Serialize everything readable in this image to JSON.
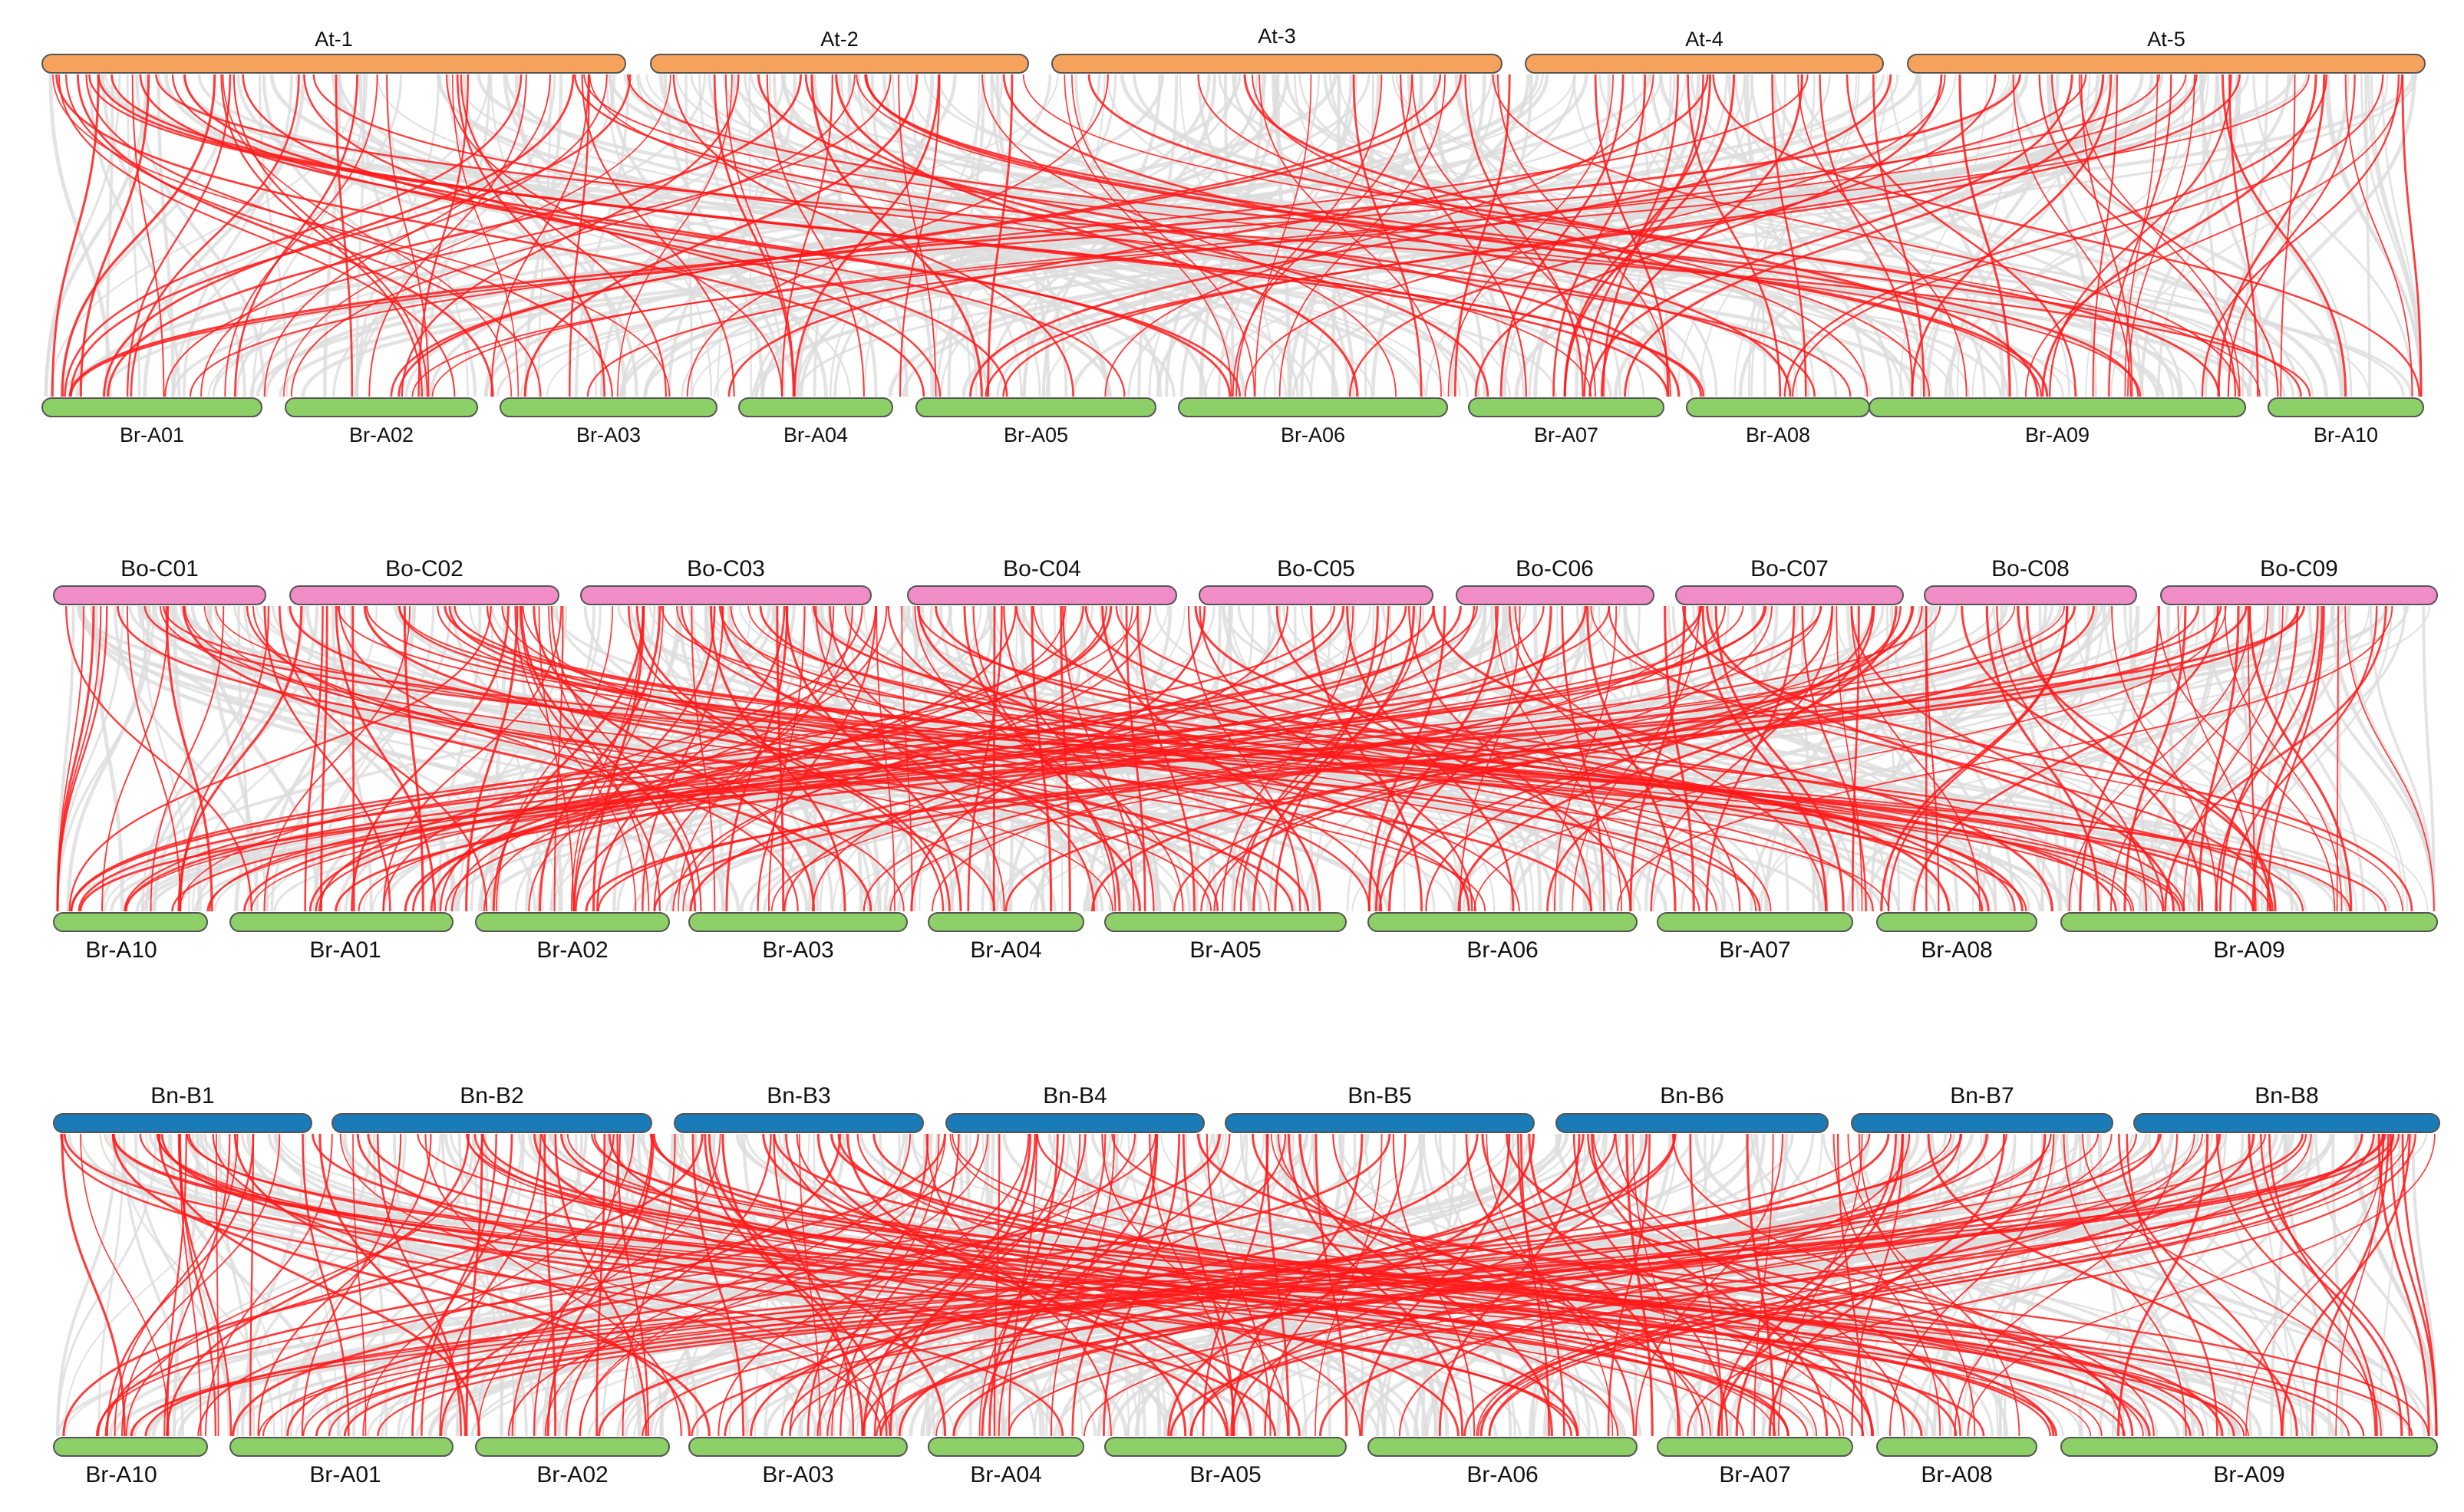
{
  "colors": {
    "at": "#f5a35c",
    "bo": "#f08cc6",
    "bn": "#1a7bb9",
    "br": "#8dd067",
    "link_highlight": "#ff1a1a",
    "link_background": "#dcdcdc",
    "bar_outline": "#555555"
  },
  "panels": [
    {
      "id": "at-br",
      "top": {
        "species_color_key": "at",
        "chromosomes": [
          "At-1",
          "At-2",
          "At-3",
          "At-4",
          "At-5"
        ]
      },
      "bottom": {
        "species_color_key": "br",
        "chromosomes": [
          "Br-A01",
          "Br-A02",
          "Br-A03",
          "Br-A04",
          "Br-A05",
          "Br-A06",
          "Br-A07",
          "Br-A08",
          "Br-A09",
          "Br-A10"
        ]
      }
    },
    {
      "id": "bo-br",
      "top": {
        "species_color_key": "bo",
        "chromosomes": [
          "Bo-C01",
          "Bo-C02",
          "Bo-C03",
          "Bo-C04",
          "Bo-C05",
          "Bo-C06",
          "Bo-C07",
          "Bo-C08",
          "Bo-C09"
        ]
      },
      "bottom": {
        "species_color_key": "br",
        "chromosomes": [
          "Br-A10",
          "Br-A01",
          "Br-A02",
          "Br-A03",
          "Br-A04",
          "Br-A05",
          "Br-A06",
          "Br-A07",
          "Br-A08",
          "Br-A09"
        ]
      }
    },
    {
      "id": "bn-br",
      "top": {
        "species_color_key": "bn",
        "chromosomes": [
          "Bn-B1",
          "Bn-B2",
          "Bn-B3",
          "Bn-B4",
          "Bn-B5",
          "Bn-B6",
          "Bn-B7",
          "Bn-B8"
        ]
      },
      "bottom": {
        "species_color_key": "br",
        "chromosomes": [
          "Br-A10",
          "Br-A01",
          "Br-A02",
          "Br-A03",
          "Br-A04",
          "Br-A05",
          "Br-A06",
          "Br-A07",
          "Br-A08",
          "Br-A09"
        ]
      }
    }
  ]
}
